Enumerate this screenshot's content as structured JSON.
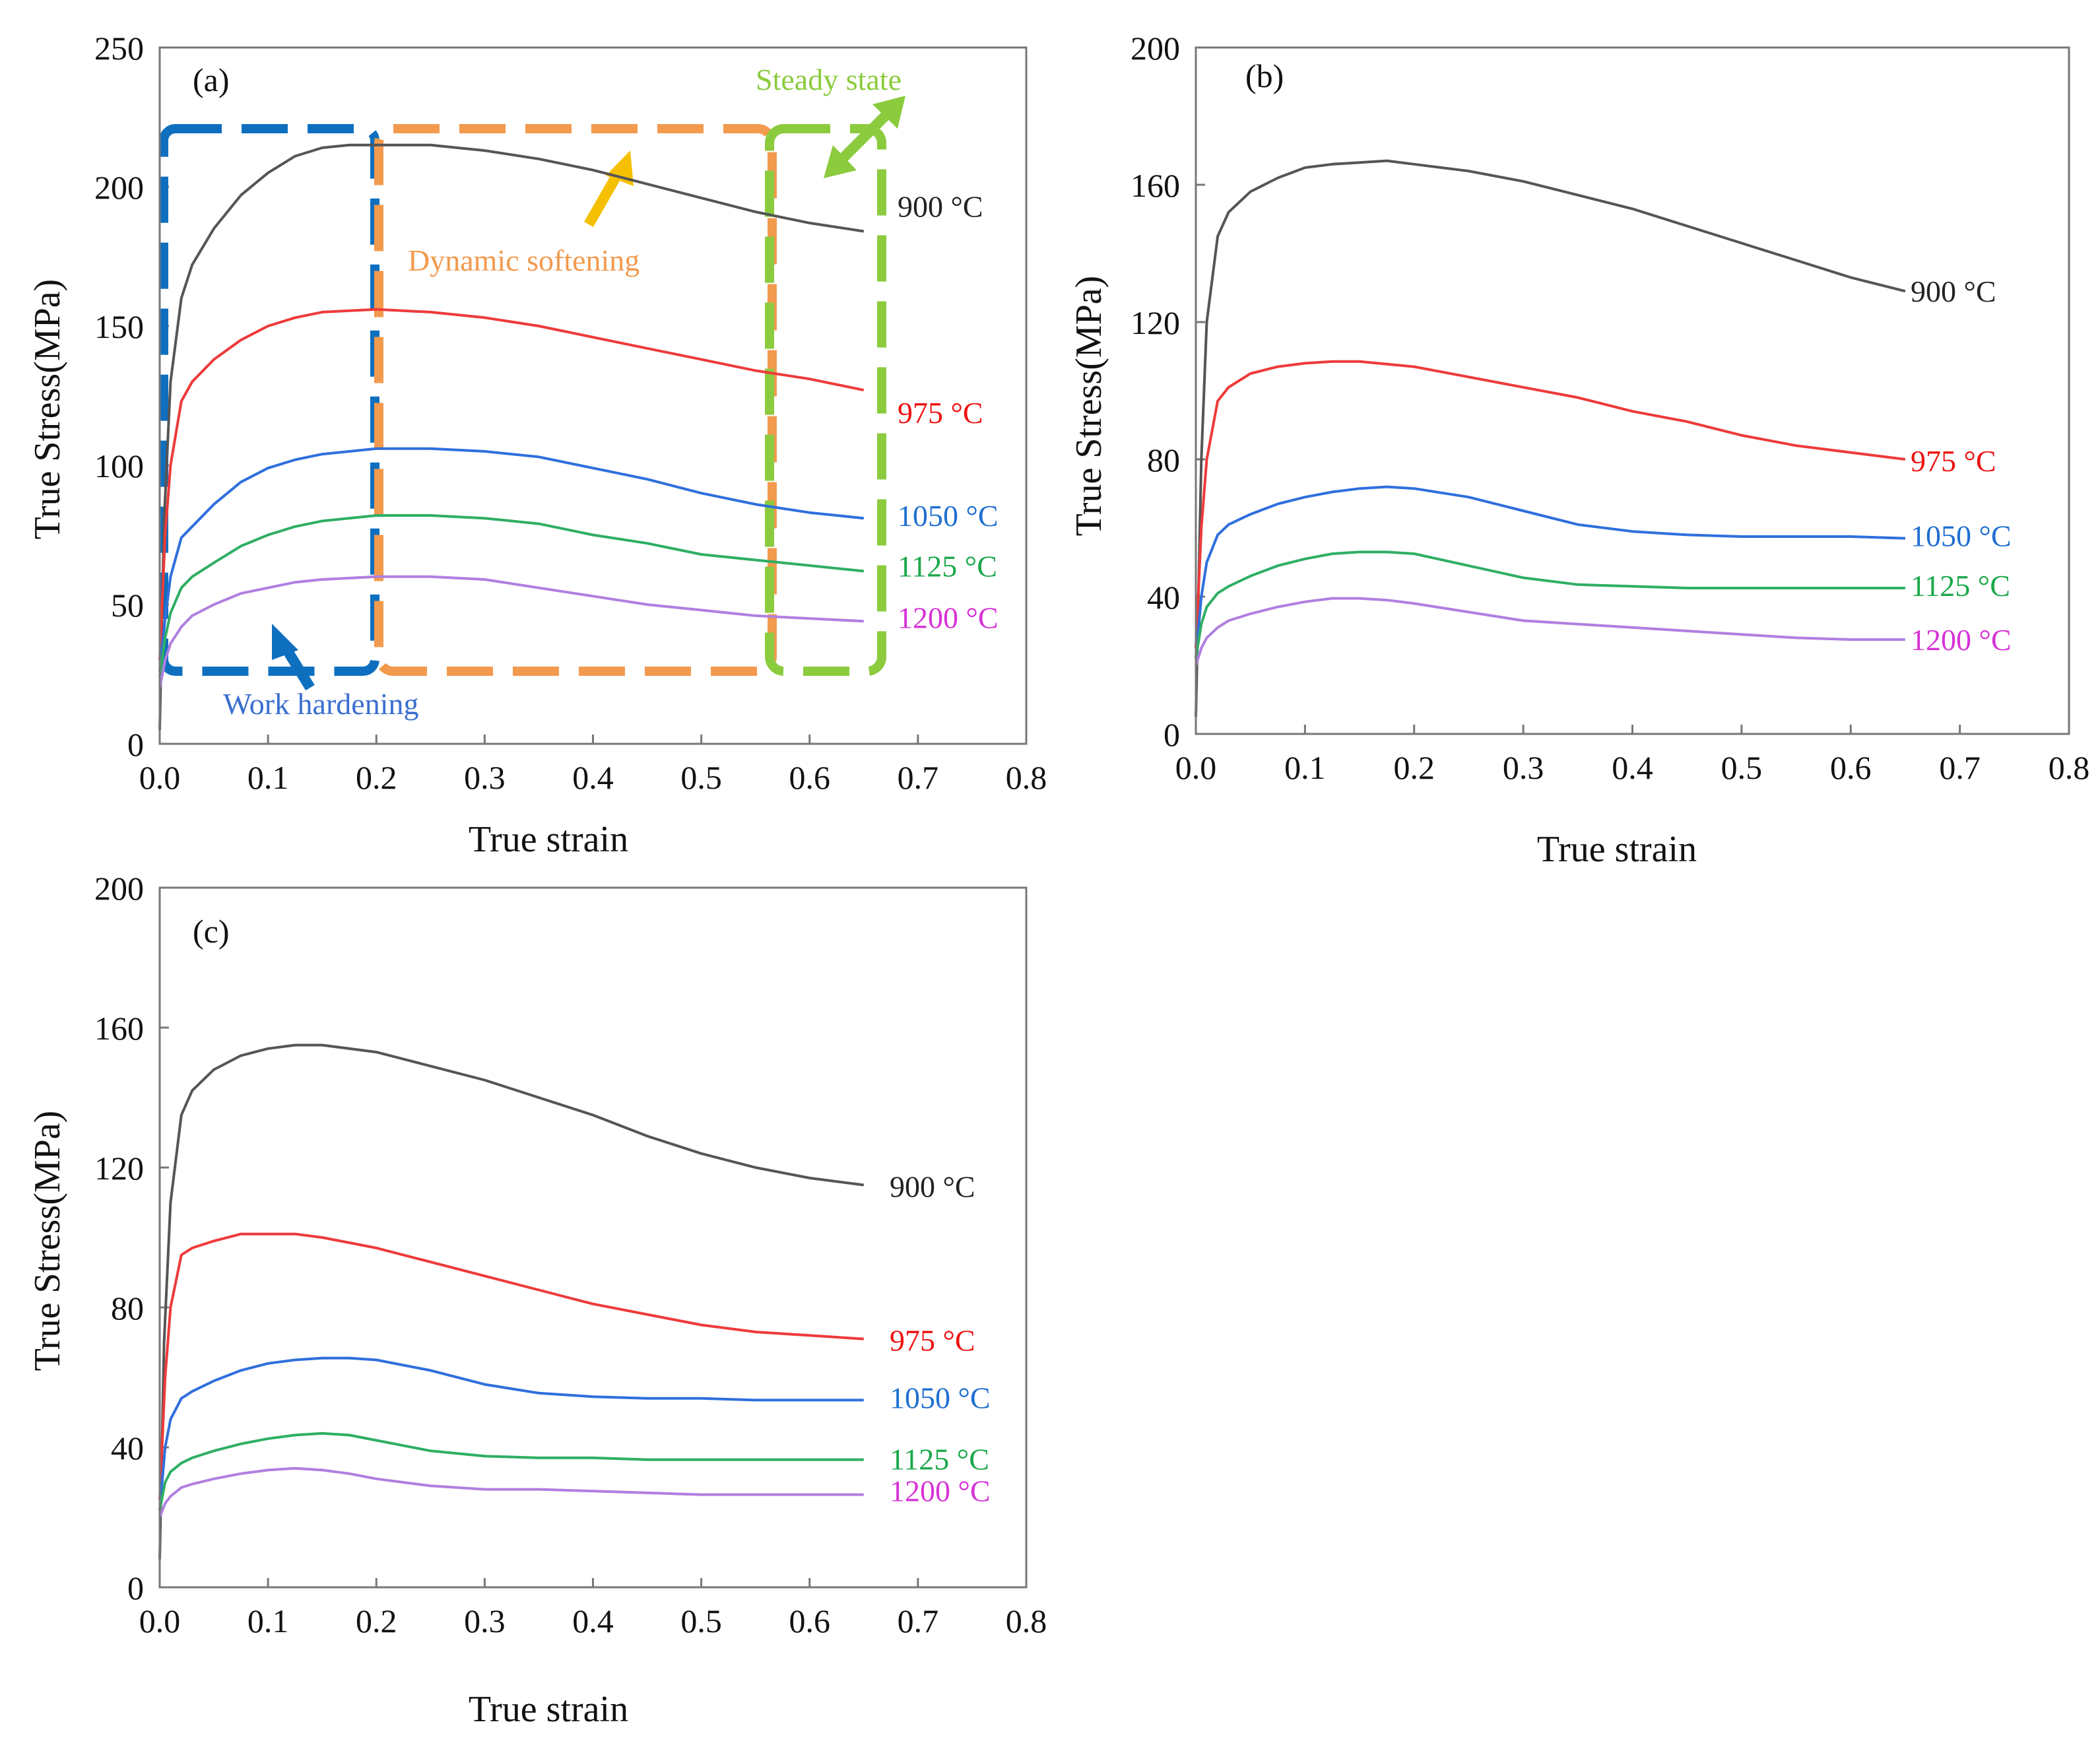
{
  "chart_data": [
    {
      "type": "line",
      "panel_label": "(a)",
      "xlabel": "True strain",
      "ylabel": "True Stress(MPa)",
      "xlim": [
        0,
        0.8
      ],
      "ylim": [
        0,
        250
      ],
      "xticks": [
        "0.0",
        "0.1",
        "0.2",
        "0.3",
        "0.4",
        "0.5",
        "0.6",
        "0.7",
        "0.8"
      ],
      "yticks": [
        "0",
        "50",
        "100",
        "150",
        "200",
        "250"
      ],
      "grid": false,
      "series": [
        {
          "name": "900 °C",
          "color": "#555555",
          "x": [
            0,
            0.004,
            0.01,
            0.02,
            0.03,
            0.05,
            0.075,
            0.1,
            0.125,
            0.15,
            0.175,
            0.2,
            0.25,
            0.3,
            0.35,
            0.4,
            0.45,
            0.5,
            0.55,
            0.6,
            0.65
          ],
          "y": [
            5,
            80,
            130,
            160,
            172,
            185,
            197,
            205,
            211,
            214,
            215,
            215,
            215,
            213,
            210,
            206,
            201,
            196,
            191,
            187,
            184
          ]
        },
        {
          "name": "975 °C",
          "color": "#ee3a3a",
          "x": [
            0,
            0.005,
            0.01,
            0.02,
            0.03,
            0.05,
            0.075,
            0.1,
            0.125,
            0.15,
            0.2,
            0.25,
            0.3,
            0.35,
            0.4,
            0.45,
            0.5,
            0.55,
            0.6,
            0.65
          ],
          "y": [
            30,
            75,
            100,
            123,
            130,
            138,
            145,
            150,
            153,
            155,
            156,
            155,
            153,
            150,
            146,
            142,
            138,
            134,
            131,
            127
          ]
        },
        {
          "name": "1050 °C",
          "color": "#2f6fdd",
          "x": [
            0,
            0.005,
            0.01,
            0.02,
            0.03,
            0.05,
            0.075,
            0.1,
            0.125,
            0.15,
            0.2,
            0.25,
            0.3,
            0.35,
            0.4,
            0.45,
            0.5,
            0.55,
            0.6,
            0.65
          ],
          "y": [
            26,
            45,
            60,
            74,
            78,
            86,
            94,
            99,
            102,
            104,
            106,
            106,
            105,
            103,
            99,
            95,
            90,
            86,
            83,
            81
          ]
        },
        {
          "name": "1125 °C",
          "color": "#2fae64",
          "x": [
            0,
            0.005,
            0.01,
            0.02,
            0.03,
            0.05,
            0.075,
            0.1,
            0.125,
            0.15,
            0.2,
            0.25,
            0.3,
            0.35,
            0.4,
            0.45,
            0.5,
            0.55,
            0.6,
            0.65
          ],
          "y": [
            24,
            38,
            47,
            56,
            60,
            65,
            71,
            75,
            78,
            80,
            82,
            82,
            81,
            79,
            75,
            72,
            68,
            66,
            64,
            62
          ]
        },
        {
          "name": "1200 °C",
          "color": "#b07fe0",
          "x": [
            0,
            0.005,
            0.01,
            0.02,
            0.03,
            0.05,
            0.075,
            0.1,
            0.125,
            0.15,
            0.2,
            0.25,
            0.3,
            0.35,
            0.4,
            0.45,
            0.5,
            0.55,
            0.6,
            0.65
          ],
          "y": [
            20,
            30,
            36,
            42,
            46,
            50,
            54,
            56,
            58,
            59,
            60,
            60,
            59,
            56,
            53,
            50,
            48,
            46,
            45,
            44
          ]
        }
      ],
      "series_label_colors": [
        "#222222",
        "#ee1111",
        "#1f6fd0",
        "#1aa84a",
        "#d632d6"
      ],
      "annotations": {
        "work_hardening": "Work hardening",
        "dynamic_softening": "Dynamic softening",
        "steady_state": "Steady state",
        "region_colors": {
          "work_hardening": "#0f6fbf",
          "dynamic_softening": "#f29a4e",
          "steady_state": "#8bcb3d",
          "arrow_dynamic": "#f5c000",
          "text_work": "#3a6fd0"
        }
      }
    },
    {
      "type": "line",
      "panel_label": "(b)",
      "xlabel": "True strain",
      "ylabel": "True Stress(MPa)",
      "xlim": [
        0,
        0.8
      ],
      "ylim": [
        0,
        200
      ],
      "xticks": [
        "0.0",
        "0.1",
        "0.2",
        "0.3",
        "0.4",
        "0.5",
        "0.6",
        "0.7",
        "0.8"
      ],
      "yticks": [
        "0",
        "40",
        "80",
        "120",
        "160",
        "200"
      ],
      "grid": false,
      "series": [
        {
          "name": "900 °C",
          "color": "#555555",
          "x": [
            0,
            0.005,
            0.01,
            0.02,
            0.03,
            0.05,
            0.075,
            0.1,
            0.125,
            0.15,
            0.175,
            0.2,
            0.25,
            0.3,
            0.35,
            0.4,
            0.45,
            0.5,
            0.55,
            0.6,
            0.65
          ],
          "y": [
            5,
            80,
            120,
            145,
            152,
            158,
            162,
            165,
            166,
            166.5,
            167,
            166,
            164,
            161,
            157,
            153,
            148,
            143,
            138,
            133,
            129
          ]
        },
        {
          "name": "975 °C",
          "color": "#ee3a3a",
          "x": [
            0,
            0.005,
            0.01,
            0.02,
            0.03,
            0.05,
            0.075,
            0.1,
            0.125,
            0.15,
            0.2,
            0.25,
            0.3,
            0.35,
            0.4,
            0.45,
            0.5,
            0.55,
            0.6,
            0.65
          ],
          "y": [
            25,
            60,
            80,
            97,
            101,
            105,
            107,
            108,
            108.5,
            108.5,
            107,
            104,
            101,
            98,
            94,
            91,
            87,
            84,
            82,
            80
          ]
        },
        {
          "name": "1050 °C",
          "color": "#2f6fdd",
          "x": [
            0,
            0.005,
            0.01,
            0.02,
            0.03,
            0.05,
            0.075,
            0.1,
            0.125,
            0.15,
            0.175,
            0.2,
            0.25,
            0.3,
            0.35,
            0.4,
            0.45,
            0.5,
            0.55,
            0.6,
            0.65
          ],
          "y": [
            22,
            40,
            50,
            58,
            61,
            64,
            67,
            69,
            70.5,
            71.5,
            72,
            71.5,
            69,
            65,
            61,
            59,
            58,
            57.5,
            57.5,
            57.5,
            57
          ]
        },
        {
          "name": "1125 °C",
          "color": "#2fae64",
          "x": [
            0,
            0.005,
            0.01,
            0.02,
            0.03,
            0.05,
            0.075,
            0.1,
            0.125,
            0.15,
            0.175,
            0.2,
            0.25,
            0.3,
            0.35,
            0.4,
            0.45,
            0.5,
            0.55,
            0.6,
            0.65
          ],
          "y": [
            22,
            32,
            37,
            41,
            43,
            46,
            49,
            51,
            52.5,
            53,
            53,
            52.5,
            49,
            45.5,
            43.5,
            43,
            42.5,
            42.5,
            42.5,
            42.5,
            42.5
          ]
        },
        {
          "name": "1200 °C",
          "color": "#b07fe0",
          "x": [
            0,
            0.005,
            0.01,
            0.02,
            0.03,
            0.05,
            0.075,
            0.1,
            0.125,
            0.15,
            0.175,
            0.2,
            0.25,
            0.3,
            0.35,
            0.4,
            0.45,
            0.5,
            0.55,
            0.6,
            0.65
          ],
          "y": [
            20,
            25,
            28,
            31,
            33,
            35,
            37,
            38.5,
            39.5,
            39.5,
            39,
            38,
            35.5,
            33,
            32,
            31,
            30,
            29,
            28,
            27.5,
            27.5
          ]
        }
      ],
      "series_label_colors": [
        "#222222",
        "#ee1111",
        "#1f6fd0",
        "#1aa84a",
        "#d632d6"
      ]
    },
    {
      "type": "line",
      "panel_label": "(c)",
      "xlabel": "True strain",
      "ylabel": "True Stress(MPa)",
      "xlim": [
        0,
        0.8
      ],
      "ylim": [
        0,
        200
      ],
      "xticks": [
        "0.0",
        "0.1",
        "0.2",
        "0.3",
        "0.4",
        "0.5",
        "0.6",
        "0.7",
        "0.8"
      ],
      "yticks": [
        "0",
        "40",
        "80",
        "120",
        "160",
        "200"
      ],
      "grid": false,
      "series": [
        {
          "name": "900 °C",
          "color": "#555555",
          "x": [
            0,
            0.004,
            0.01,
            0.02,
            0.03,
            0.05,
            0.075,
            0.1,
            0.125,
            0.15,
            0.2,
            0.25,
            0.3,
            0.35,
            0.4,
            0.45,
            0.5,
            0.55,
            0.6,
            0.65
          ],
          "y": [
            8,
            70,
            110,
            135,
            142,
            148,
            152,
            154,
            155,
            155,
            153,
            149,
            145,
            140,
            135,
            129,
            124,
            120,
            117,
            115
          ]
        },
        {
          "name": "975 °C",
          "color": "#ee3a3a",
          "x": [
            0,
            0.005,
            0.01,
            0.02,
            0.03,
            0.05,
            0.075,
            0.1,
            0.125,
            0.15,
            0.2,
            0.25,
            0.3,
            0.35,
            0.4,
            0.45,
            0.5,
            0.55,
            0.6,
            0.65
          ],
          "y": [
            25,
            60,
            80,
            95,
            97,
            99,
            101,
            101,
            101,
            100,
            97,
            93,
            89,
            85,
            81,
            78,
            75,
            73,
            72,
            71
          ]
        },
        {
          "name": "1050 °C",
          "color": "#2f6fdd",
          "x": [
            0,
            0.005,
            0.01,
            0.02,
            0.03,
            0.05,
            0.075,
            0.1,
            0.125,
            0.15,
            0.175,
            0.2,
            0.25,
            0.3,
            0.35,
            0.4,
            0.45,
            0.5,
            0.55,
            0.6,
            0.65
          ],
          "y": [
            22,
            40,
            48,
            54,
            56,
            59,
            62,
            64,
            65,
            65.5,
            65.5,
            65,
            62,
            58,
            55.5,
            54.5,
            54,
            54,
            53.5,
            53.5,
            53.5
          ]
        },
        {
          "name": "1125 °C",
          "color": "#2fae64",
          "x": [
            0,
            0.005,
            0.01,
            0.02,
            0.03,
            0.05,
            0.075,
            0.1,
            0.125,
            0.15,
            0.175,
            0.2,
            0.25,
            0.3,
            0.35,
            0.4,
            0.45,
            0.5,
            0.55,
            0.6,
            0.65
          ],
          "y": [
            22,
            30,
            33,
            35.5,
            37,
            39,
            41,
            42.5,
            43.5,
            44,
            43.5,
            42,
            39,
            37.5,
            37,
            37,
            36.5,
            36.5,
            36.5,
            36.5,
            36.5
          ]
        },
        {
          "name": "1200 °C",
          "color": "#b07fe0",
          "x": [
            0,
            0.005,
            0.01,
            0.02,
            0.03,
            0.05,
            0.075,
            0.1,
            0.125,
            0.15,
            0.175,
            0.2,
            0.25,
            0.3,
            0.35,
            0.4,
            0.45,
            0.5,
            0.55,
            0.6,
            0.65
          ],
          "y": [
            20,
            24,
            26,
            28.5,
            29.5,
            31,
            32.5,
            33.5,
            34,
            33.5,
            32.5,
            31,
            29,
            28,
            28,
            27.5,
            27,
            26.5,
            26.5,
            26.5,
            26.5
          ]
        }
      ],
      "series_label_colors": [
        "#222222",
        "#ee1111",
        "#1f6fd0",
        "#1aa84a",
        "#d632d6"
      ]
    }
  ]
}
